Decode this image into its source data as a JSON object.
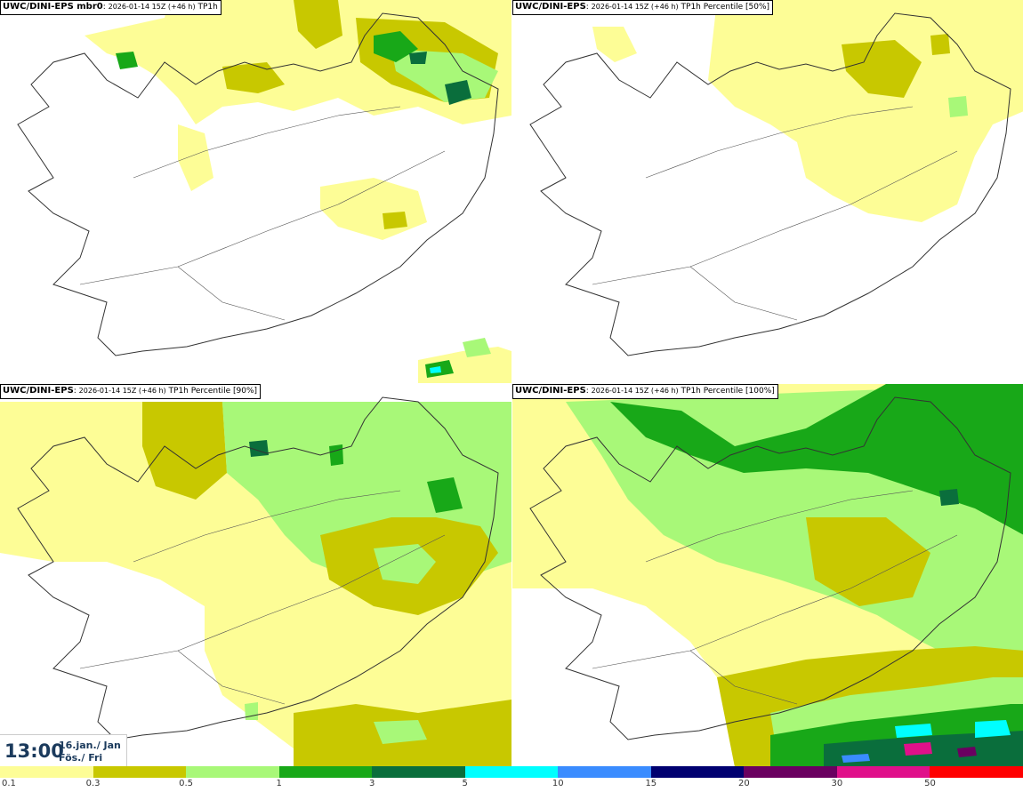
{
  "panels": [
    {
      "model": "UWC/DINI-EPS mbr0",
      "run": "2026-01-14 15Z (+46 h)",
      "field": "TP1h"
    },
    {
      "model": "UWC/DINI-EPS",
      "run": "2026-01-14 15Z (+46 h)",
      "field": "TP1h Percentile [50%]"
    },
    {
      "model": "UWC/DINI-EPS",
      "run": "2026-01-14 15Z (+46 h)",
      "field": "TP1h Percentile [90%]"
    },
    {
      "model": "UWC/DINI-EPS",
      "run": "2026-01-14 15Z (+46 h)",
      "field": "TP1h Percentile [100%]"
    }
  ],
  "valid_time": {
    "time": "13:00",
    "date_line1": "16.jan./ Jan",
    "date_line2": "Fös./ Fri"
  },
  "colorbar": {
    "colors": [
      "#fdfd96",
      "#c8c800",
      "#a8f878",
      "#18a818",
      "#0a6e3c",
      "#00ffff",
      "#3a8cff",
      "#000070",
      "#6a0060",
      "#e0108a",
      "#ff0000"
    ],
    "labels": [
      "0.1",
      "0.3",
      "0.5",
      "1",
      "3",
      "5",
      "10",
      "15",
      "20",
      "30",
      "50"
    ]
  }
}
